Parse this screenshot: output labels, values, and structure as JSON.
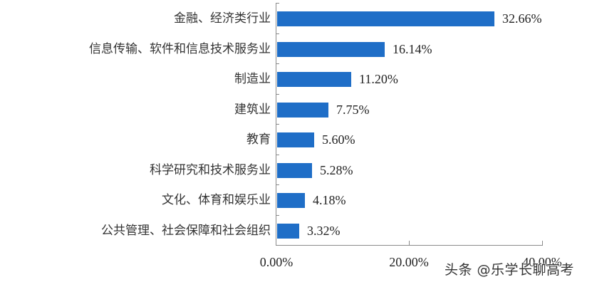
{
  "chart_data": {
    "type": "bar",
    "orientation": "horizontal",
    "title": "",
    "xlabel": "",
    "ylabel": "",
    "categories": [
      "金融、经济类行业",
      "信息传输、软件和信息技术服务业",
      "制造业",
      "建筑业",
      "教育",
      "科学研究和技术服务业",
      "文化、体育和娱乐业",
      "公共管理、社会保障和社会组织"
    ],
    "values": [
      32.66,
      16.14,
      11.2,
      7.75,
      5.6,
      5.28,
      4.18,
      3.32
    ],
    "value_labels": [
      "32.66%",
      "16.14%",
      "11.20%",
      "7.75%",
      "5.60%",
      "5.28%",
      "4.18%",
      "3.32%"
    ],
    "xlim": [
      0,
      40
    ],
    "x_ticks": [
      "0.00%",
      "20.00%",
      "40.00%"
    ],
    "grid": false,
    "legend": null,
    "bar_color": "#1f6ec7"
  },
  "watermark": "头条 @乐学长聊高考"
}
